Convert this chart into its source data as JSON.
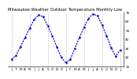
{
  "title": "Milwaukee Weather Outdoor Temperature Monthly Low",
  "months": [
    "J",
    "",
    "F",
    "",
    "M",
    "",
    "A",
    "",
    "M",
    "",
    "J",
    "",
    "J",
    "",
    "A",
    "",
    "S",
    "",
    "O",
    "",
    "N",
    "",
    "D",
    "",
    "J",
    "",
    "F",
    "",
    "M",
    "",
    "A",
    "",
    "M",
    "",
    "J",
    "",
    "J",
    "",
    "A",
    "",
    "S",
    "",
    "O",
    "",
    "N",
    "",
    "D",
    "",
    "J",
    ""
  ],
  "month_labels": [
    "J",
    "F",
    "M",
    "A",
    "M",
    "J",
    "J",
    "A",
    "S",
    "O",
    "N",
    "D",
    "J",
    "F",
    "M",
    "A",
    "M",
    "J",
    "J",
    "A",
    "S",
    "O",
    "N",
    "D",
    "J"
  ],
  "values": [
    18,
    22,
    32,
    42,
    52,
    62,
    67,
    65,
    55,
    44,
    32,
    20,
    14,
    18,
    30,
    42,
    53,
    63,
    68,
    66,
    56,
    44,
    31,
    21,
    28
  ],
  "line_color": "#0000cc",
  "bg_color": "#ffffff",
  "plot_bg": "#ffffff",
  "ylim": [
    10,
    70
  ],
  "yticks": [
    10,
    20,
    30,
    40,
    50,
    60,
    70
  ],
  "ytick_labels": [
    "10",
    "20",
    "30",
    "40",
    "50",
    "60",
    "70"
  ],
  "grid_color": "#999999",
  "title_fontsize": 3.8,
  "tick_fontsize": 3.0,
  "line_width": 0.8,
  "marker_size": 1.5,
  "vgrid_positions": [
    0,
    4,
    8,
    12,
    16,
    20,
    24
  ]
}
